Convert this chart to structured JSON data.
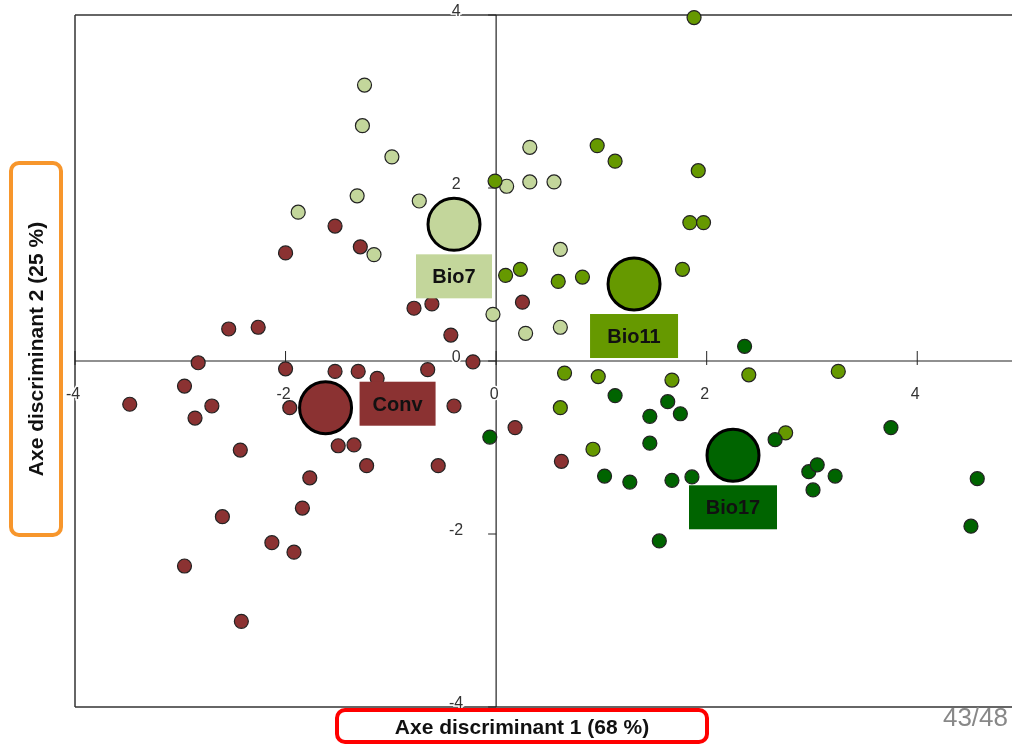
{
  "chart_data": {
    "type": "scatter",
    "xlabel": "Axe discriminant 1 (68 %)",
    "ylabel": "Axe discriminant 2 (25 %)",
    "xlim": [
      -4,
      4.9
    ],
    "ylim": [
      -4,
      4
    ],
    "xticks": [
      -4,
      -2,
      0,
      2,
      4
    ],
    "yticks": [
      -4,
      -2,
      0,
      2,
      4
    ],
    "grid": false,
    "legend": false,
    "marker": "circle",
    "annotations": [
      "43/48"
    ],
    "series": [
      {
        "name": "Conv",
        "color": "#8b3232",
        "x": [
          -1.53,
          -1.29,
          -2.0,
          -0.78,
          -0.61,
          -0.43,
          0.25,
          -2.54,
          -2.26,
          -2.83,
          -2.0,
          -1.53,
          -1.31,
          -1.13,
          -0.65,
          -0.22,
          -3.48,
          -2.96,
          -2.7,
          -2.86,
          -1.96,
          -0.4,
          0.18,
          -2.43,
          -1.5,
          -1.35,
          -1.23,
          -0.55,
          -1.77,
          -1.84,
          -2.6,
          -2.13,
          -1.92,
          -2.96,
          -2.42,
          0.62
        ],
        "values": [
          1.56,
          1.32,
          1.25,
          0.61,
          0.66,
          0.3,
          0.68,
          0.37,
          0.39,
          -0.02,
          -0.09,
          -0.12,
          -0.12,
          -0.2,
          -0.1,
          -0.01,
          -0.5,
          -0.29,
          -0.52,
          -0.66,
          -0.54,
          -0.52,
          -0.77,
          -1.03,
          -0.98,
          -0.97,
          -1.21,
          -1.21,
          -1.35,
          -1.7,
          -1.8,
          -2.1,
          -2.21,
          -2.37,
          -3.01,
          -1.16
        ]
      },
      {
        "name": "Bio7",
        "color": "#c3d69b",
        "x": [
          -1.25,
          -1.27,
          -0.99,
          -1.32,
          -1.88,
          -1.16,
          -0.73,
          0.32,
          0.1,
          0.32,
          0.55,
          0.61,
          -0.03,
          0.28,
          0.61
        ],
        "values": [
          3.19,
          2.72,
          2.36,
          1.91,
          1.72,
          1.23,
          1.85,
          2.47,
          2.02,
          2.07,
          2.07,
          1.29,
          0.54,
          0.32,
          0.39
        ]
      },
      {
        "name": "Bio11",
        "color": "#669900",
        "x": [
          1.88,
          0.96,
          1.13,
          1.92,
          -0.01,
          1.84,
          1.97,
          0.09,
          0.23,
          0.59,
          0.82,
          1.77,
          0.65,
          0.97,
          1.67,
          2.4,
          3.25,
          0.61,
          0.92,
          2.75
        ],
        "values": [
          3.97,
          2.49,
          2.31,
          2.2,
          2.08,
          1.6,
          1.6,
          0.99,
          1.06,
          0.92,
          0.97,
          1.06,
          -0.14,
          -0.18,
          -0.22,
          -0.16,
          -0.12,
          -0.54,
          -1.02,
          -0.83
        ]
      },
      {
        "name": "Bio17",
        "color": "#006400",
        "x": [
          2.36,
          1.13,
          1.63,
          1.46,
          1.75,
          1.46,
          -0.06,
          1.03,
          1.27,
          1.67,
          1.86,
          1.55,
          2.65,
          2.97,
          3.05,
          3.01,
          3.22,
          3.75,
          4.57,
          4.51
        ],
        "values": [
          0.17,
          -0.4,
          -0.47,
          -0.64,
          -0.61,
          -0.95,
          -0.88,
          -1.33,
          -1.4,
          -1.38,
          -1.34,
          -2.08,
          -0.91,
          -1.28,
          -1.2,
          -1.49,
          -1.33,
          -0.77,
          -1.36,
          -1.91
        ]
      },
      {
        "type": "bubble",
        "colors": [
          "#8b3232",
          "#c3d69b",
          "#669900",
          "#006400"
        ],
        "x": [
          -1.62,
          -0.4,
          1.31,
          2.25
        ],
        "values": [
          -0.54,
          1.58,
          0.89,
          -1.09
        ],
        "sizes": [
          1,
          1,
          1,
          1
        ]
      }
    ]
  }
}
